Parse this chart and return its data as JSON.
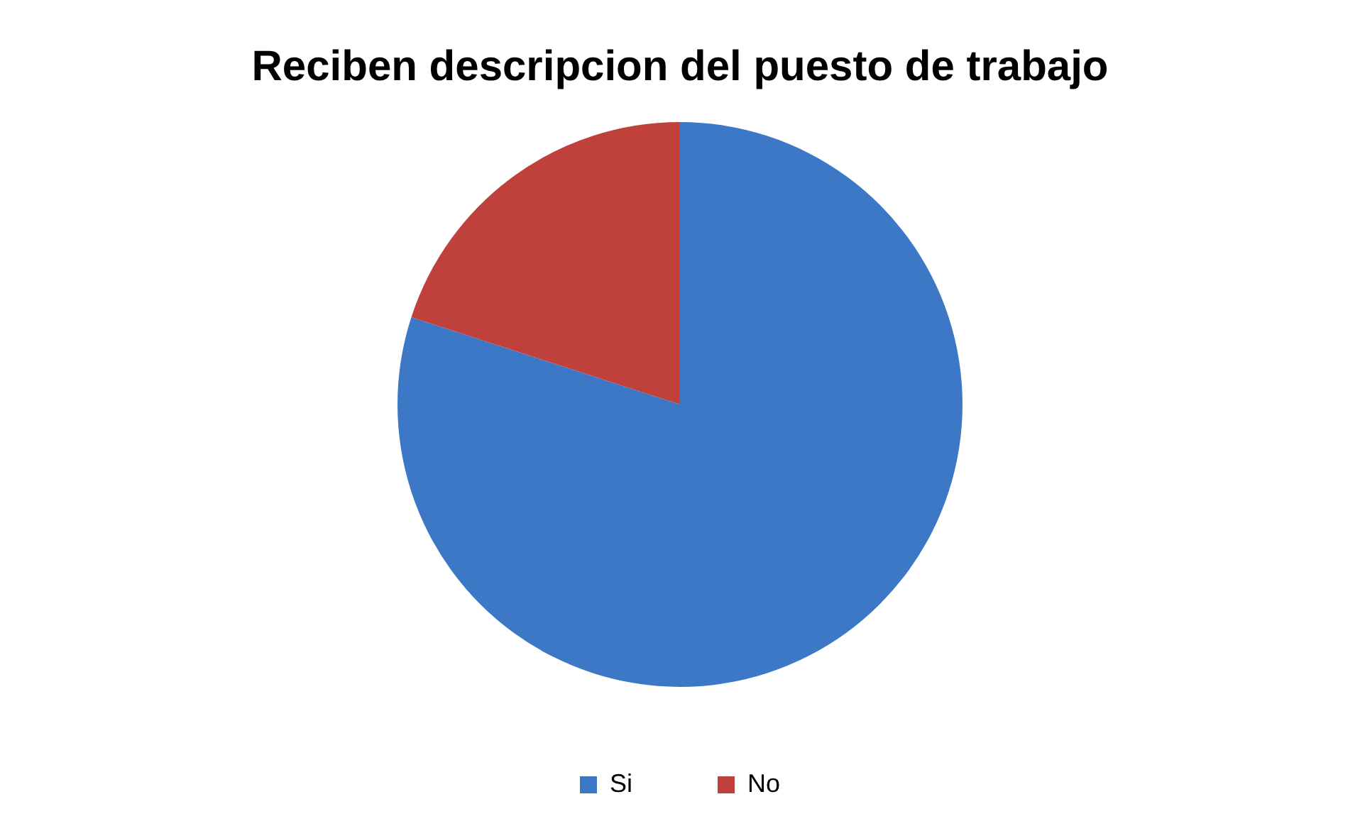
{
  "chart_data": {
    "type": "pie",
    "title": "Reciben descripcion del puesto de trabajo",
    "categories": [
      "Si",
      "No"
    ],
    "values": [
      80,
      20
    ],
    "colors": [
      "#3d78c6",
      "#c0403c"
    ],
    "legend": "bottom"
  }
}
